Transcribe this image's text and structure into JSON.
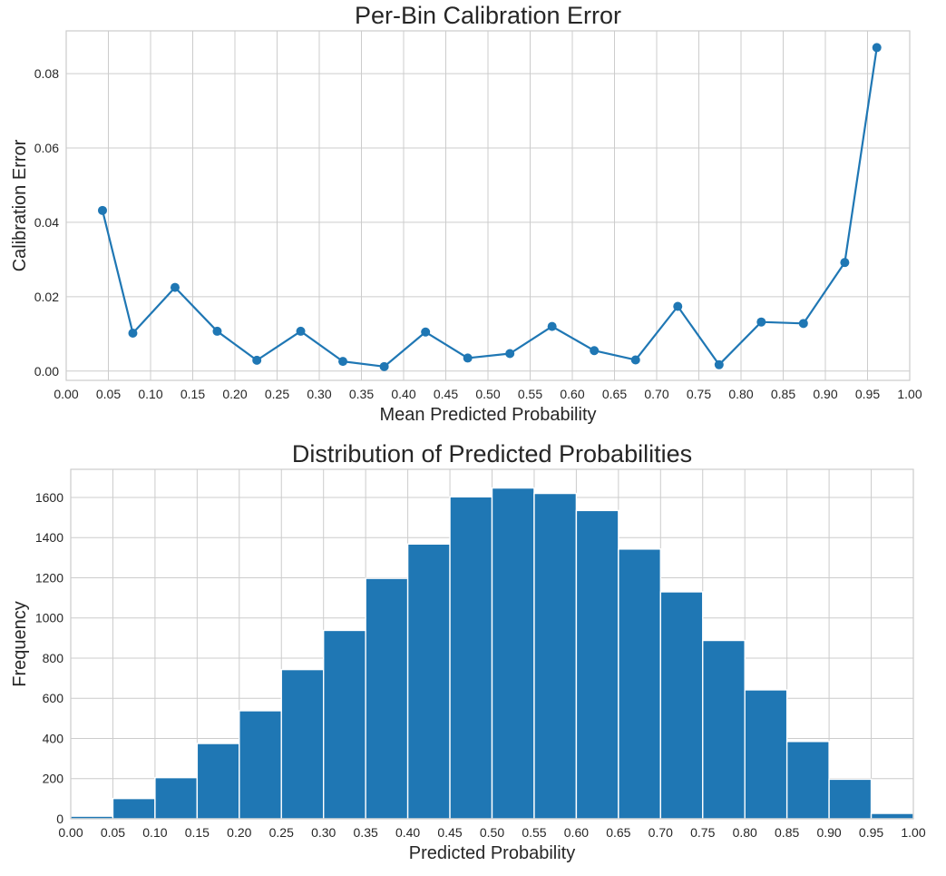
{
  "chart_data": [
    {
      "type": "line",
      "title": "Per-Bin Calibration Error",
      "xlabel": "Mean Predicted Probability",
      "ylabel": "Calibration Error",
      "xlim": [
        0.0,
        1.0
      ],
      "ylim": [
        -0.0025,
        0.0915
      ],
      "xticks": [
        0.0,
        0.05,
        0.1,
        0.15,
        0.2,
        0.25,
        0.3,
        0.35,
        0.4,
        0.45,
        0.5,
        0.55,
        0.6,
        0.65,
        0.7,
        0.75,
        0.8,
        0.85,
        0.9,
        0.95,
        1.0
      ],
      "xtick_labels": [
        "0.00",
        "0.05",
        "0.10",
        "0.15",
        "0.20",
        "0.25",
        "0.30",
        "0.35",
        "0.40",
        "0.45",
        "0.50",
        "0.55",
        "0.60",
        "0.65",
        "0.70",
        "0.75",
        "0.80",
        "0.85",
        "0.90",
        "0.95",
        "1.00"
      ],
      "yticks": [
        0.0,
        0.02,
        0.04,
        0.06,
        0.08
      ],
      "ytick_labels": [
        "0.00",
        "0.02",
        "0.04",
        "0.06",
        "0.08"
      ],
      "grid": true,
      "color": "#1f77b4",
      "series": [
        {
          "x": [
            0.043,
            0.079,
            0.129,
            0.179,
            0.226,
            0.278,
            0.328,
            0.377,
            0.426,
            0.476,
            0.526,
            0.576,
            0.626,
            0.675,
            0.725,
            0.774,
            0.824,
            0.874,
            0.923,
            0.961
          ],
          "values": [
            0.0432,
            0.0102,
            0.0225,
            0.0107,
            0.0029,
            0.0107,
            0.0026,
            0.0012,
            0.0105,
            0.0035,
            0.0047,
            0.012,
            0.0055,
            0.003,
            0.0174,
            0.0017,
            0.0132,
            0.0128,
            0.0292,
            0.087
          ]
        }
      ]
    },
    {
      "type": "bar",
      "title": "Distribution of Predicted Probabilities",
      "xlabel": "Predicted Probability",
      "ylabel": "Frequency",
      "xlim": [
        0.0,
        1.0
      ],
      "ylim": [
        0,
        1740
      ],
      "xticks": [
        0.0,
        0.05,
        0.1,
        0.15,
        0.2,
        0.25,
        0.3,
        0.35,
        0.4,
        0.45,
        0.5,
        0.55,
        0.6,
        0.65,
        0.7,
        0.75,
        0.8,
        0.85,
        0.9,
        0.95,
        1.0
      ],
      "xtick_labels": [
        "0.00",
        "0.05",
        "0.10",
        "0.15",
        "0.20",
        "0.25",
        "0.30",
        "0.35",
        "0.40",
        "0.45",
        "0.50",
        "0.55",
        "0.60",
        "0.65",
        "0.70",
        "0.75",
        "0.80",
        "0.85",
        "0.90",
        "0.95",
        "1.00"
      ],
      "yticks": [
        0,
        200,
        400,
        600,
        800,
        1000,
        1200,
        1400,
        1600
      ],
      "ytick_labels": [
        "0",
        "200",
        "400",
        "600",
        "800",
        "1000",
        "1200",
        "1400",
        "1600"
      ],
      "grid": true,
      "color": "#1f77b4",
      "bin_edges": [
        0.0,
        0.05,
        0.1,
        0.15,
        0.2,
        0.25,
        0.3,
        0.35,
        0.4,
        0.45,
        0.5,
        0.55,
        0.6,
        0.65,
        0.7,
        0.75,
        0.8,
        0.85,
        0.9,
        0.95,
        1.0
      ],
      "values": [
        13,
        101,
        205,
        375,
        538,
        743,
        938,
        1197,
        1368,
        1603,
        1647,
        1620,
        1535,
        1343,
        1130,
        888,
        642,
        385,
        197,
        27
      ]
    }
  ]
}
